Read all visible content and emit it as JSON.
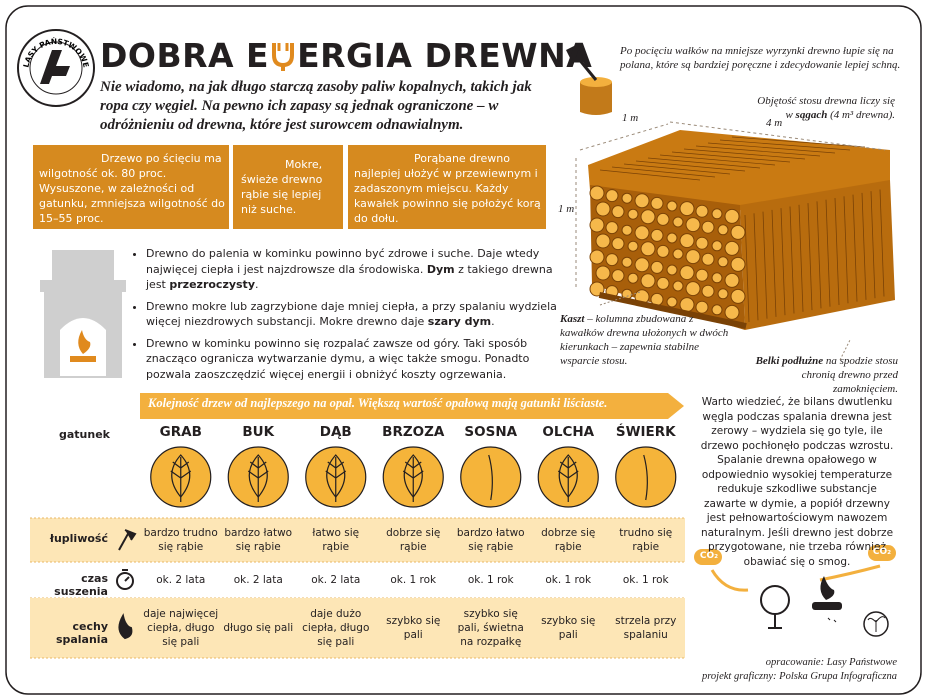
{
  "header": {
    "logo_text": "LASY PAŃSTWOWE",
    "title_before": "DOBRA E",
    "title_after": "ERGIA DREWNA",
    "intro": "Nie wiadomo, na jak długo starczą zasoby paliw kopalnych, takich jak ropa czy węgiel. Na pewno ich zapasy są jednak ograniczone – w odróżnieniu od drewna, które jest surowcem odnawialnym."
  },
  "boxes": [
    "Drzewo po ścięciu ma wilgotność ok. 80 proc. Wysuszone, w zależności od gatunku, zmniejsza wilgotność do 15–55 proc.",
    "Mokre, świeże drewno rąbie się lepiej niż suche.",
    "Porąbane drewno najlepiej ułożyć w przewiewnym i zadaszonym miejscu. Każdy kawałek powinno się położyć korą do dołu."
  ],
  "bullets": [
    [
      {
        "text": "Drewno do palenia w kominku powinno być zdrowe i suche. Daje wtedy najwięcej ciepła i jest najzdrowsze dla środowiska. ",
        "bold": false
      },
      {
        "text": "Dym",
        "bold": true
      },
      {
        "text": " z takiego drewna jest ",
        "bold": false
      },
      {
        "text": "przezroczysty",
        "bold": true
      },
      {
        "text": ".",
        "bold": false
      }
    ],
    [
      {
        "text": "Drewno mokre lub zagrzybione daje mniej ciepła, a przy spalaniu wydziela więcej niezdrowych substancji. Mokre drewno daje ",
        "bold": false
      },
      {
        "text": "szary dym",
        "bold": true
      },
      {
        "text": ".",
        "bold": false
      }
    ],
    [
      {
        "text": "Drewno w kominku powinno się rozpalać zawsze od góry. Taki sposób znacząco ogranicza wytwarzanie dymu, a więc także smogu. Ponadto pozwala zaoszczędzić więcej energii i obniżyć koszty ogrzewania.",
        "bold": false
      }
    ]
  ],
  "woodpile": {
    "split_note": "Po pocięciu wałków na mniejsze wyrzynki drewno łupie się na polana, które są bardziej poręczne i zdecydowanie lepiej schną.",
    "volume_note": [
      {
        "text": "Objętość stosu drewna liczy się w ",
        "bold": false
      },
      {
        "text": "sągach",
        "bold": true
      },
      {
        "text": " (4 m³ drewna).",
        "bold": false
      }
    ],
    "dim_depth": "1 m",
    "dim_length": "4 m",
    "dim_height": "1 m",
    "kaszt_note": [
      {
        "text": "Kaszt",
        "bold": true
      },
      {
        "text": " – kolumna zbudowana z kawałków drewna ułożonych w dwóch kierunkach – zapewnia stabilne wsparcie stosu.",
        "bold": false
      }
    ],
    "belki_note": [
      {
        "text": "Belki podłużne",
        "bold": true
      },
      {
        "text": " na spodzie stosu chronią drewno przed zamoknięciem.",
        "bold": false
      }
    ]
  },
  "fact": "Warto wiedzieć, że bilans dwutlenku węgla podczas spalania drewna jest zerowy – wydziela się go tyle, ile drzewo pochłonęło podczas wzrostu. Spalanie drewna opałowego w odpowiednio wysokiej temperaturze redukuje szkodliwe substancje zawarte w dymie, a popiół drzewny jest pełnowartościowym nawozem naturalnym. Jeśli drewno jest dobrze przygotowane, nie trzeba również obawiać się o smog.",
  "co2_labels": [
    "CO₂",
    "CO₂"
  ],
  "table": {
    "banner": "Kolejność drzew od najlepszego na opał. Większą wartość opałową mają gatunki liściaste.",
    "species_label": "gatunek",
    "species": [
      "GRAB",
      "BUK",
      "DĄB",
      "BRZOZA",
      "SOSNA",
      "OLCHA",
      "ŚWIERK"
    ],
    "rows": [
      {
        "label": "łupliwość",
        "values": [
          "bardzo trudno się rąbie",
          "bardzo łatwo się rąbie",
          "łatwo się rąbie",
          "dobrze się rąbie",
          "bardzo łatwo się rąbie",
          "dobrze się rąbie",
          "trudno się rąbie"
        ]
      },
      {
        "label": "czas suszenia",
        "values": [
          "ok. 2 lata",
          "ok. 2 lata",
          "ok. 2 lata",
          "ok. 1 rok",
          "ok. 1 rok",
          "ok. 1 rok",
          "ok. 1 rok"
        ]
      },
      {
        "label": "cechy spalania",
        "values": [
          "daje najwięcej ciepła, długo się pali",
          "długo się pali",
          "daje dużo ciepła, długo się pali",
          "szybko się pali",
          "szybko się pali, świetna na rozpałkę",
          "szybko się pali",
          "strzela przy spalaniu"
        ]
      }
    ]
  },
  "credits": [
    "opracowanie: Lasy Państwowe",
    "projekt graficzny: Polska Grupa Infograficzna"
  ]
}
